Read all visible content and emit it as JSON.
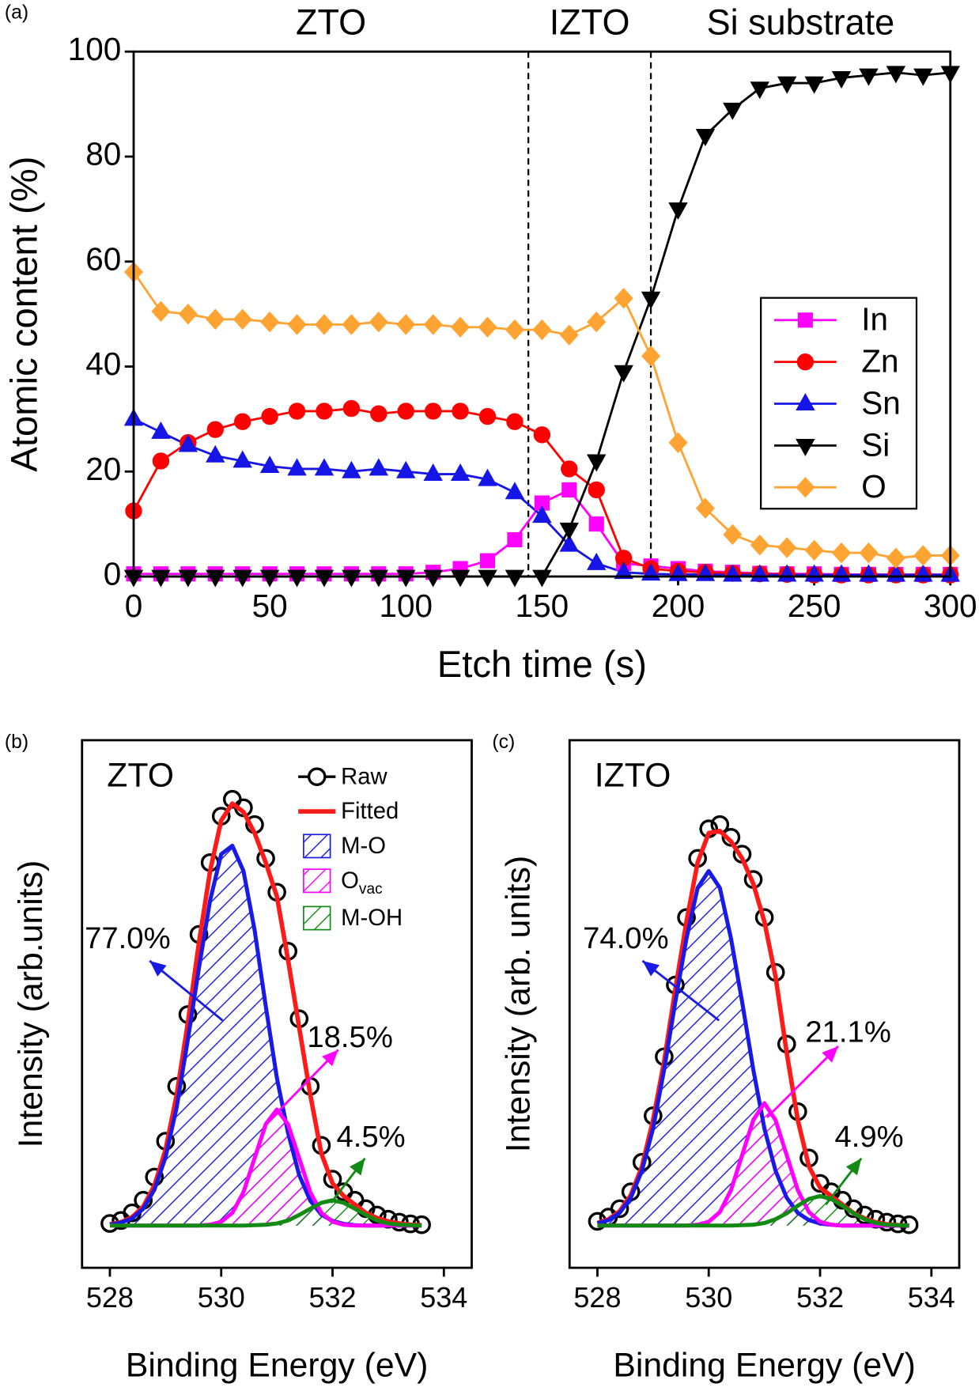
{
  "chart_data": [
    {
      "type": "line",
      "panel": "(a)",
      "xlabel": "Etch time (s)",
      "ylabel": "Atomic content (%)",
      "x": [
        0,
        10,
        20,
        30,
        40,
        50,
        60,
        70,
        80,
        90,
        100,
        110,
        120,
        130,
        140,
        150,
        160,
        170,
        180,
        190,
        200,
        210,
        220,
        230,
        240,
        250,
        260,
        270,
        280,
        290,
        300
      ],
      "xlim": [
        0,
        300
      ],
      "xticks": [
        0,
        50,
        100,
        150,
        200,
        250,
        300
      ],
      "ylim": [
        0,
        100
      ],
      "yticks": [
        0,
        20,
        40,
        60,
        80,
        100
      ],
      "vlines": [
        145,
        190
      ],
      "regions": [
        "ZTO",
        "IZTO",
        "Si substrate"
      ],
      "legend": "center right",
      "series": [
        {
          "name": "In",
          "color": "#ff00ff",
          "marker": "square",
          "values": [
            0.5,
            0.5,
            0.5,
            0.5,
            0.5,
            0.5,
            0.5,
            0.5,
            0.5,
            0.5,
            0.5,
            0.8,
            1.5,
            3,
            7,
            14,
            16.5,
            10,
            2.5,
            2,
            1.5,
            1,
            0.8,
            0.6,
            0.5,
            0.5,
            0.4,
            0.4,
            0.4,
            0.4,
            0.4
          ]
        },
        {
          "name": "Zn",
          "color": "#ff0000",
          "marker": "circle",
          "values": [
            12.5,
            22,
            25.5,
            28,
            29.5,
            30.5,
            31.5,
            31.5,
            32,
            31,
            31.5,
            31.5,
            31.5,
            30.5,
            29.5,
            27,
            20.5,
            16.5,
            3.5,
            1.5,
            1,
            0.8,
            0.6,
            0.5,
            0.4,
            0.3,
            0.3,
            0.3,
            0.3,
            0.3,
            0.3
          ]
        },
        {
          "name": "Sn",
          "color": "#1515e6",
          "marker": "triangle-up",
          "values": [
            30,
            27.5,
            25,
            23,
            22,
            21,
            20.5,
            20.5,
            20,
            20.5,
            20,
            19.5,
            19.5,
            18.5,
            16,
            11.5,
            6,
            2.5,
            0.8,
            0.5,
            0.4,
            0.4,
            0.3,
            0.3,
            0.3,
            0.3,
            0.3,
            0.3,
            0.3,
            0.3,
            0.3
          ]
        },
        {
          "name": "Si",
          "color": "#000000",
          "marker": "triangle-down",
          "values": [
            0,
            0,
            0,
            0,
            0,
            0,
            0,
            0,
            0,
            0,
            0,
            0,
            0,
            0,
            0,
            0,
            9,
            22,
            39,
            53,
            70,
            84,
            89,
            93,
            94,
            94,
            95,
            95.5,
            96,
            95.5,
            96
          ]
        },
        {
          "name": "O",
          "color": "#ffa333",
          "marker": "diamond",
          "values": [
            58,
            50.5,
            50,
            49,
            49,
            48.5,
            48,
            48,
            48,
            48.5,
            48,
            48,
            47.5,
            47.5,
            47,
            47,
            46,
            48.5,
            53,
            42,
            25.5,
            13,
            8,
            6,
            5.5,
            5,
            4.5,
            4.5,
            3.5,
            4,
            4
          ]
        }
      ]
    },
    {
      "type": "xps",
      "panel": "(b)",
      "title": "ZTO",
      "xlabel": "Binding Energy (eV)",
      "ylabel": "Intensity (arb.units)",
      "x": [
        528.0,
        528.2,
        528.4,
        528.6,
        528.8,
        529.0,
        529.2,
        529.4,
        529.6,
        529.8,
        530.0,
        530.2,
        530.4,
        530.6,
        530.8,
        531.0,
        531.2,
        531.4,
        531.6,
        531.8,
        532.0,
        532.2,
        532.4,
        532.6,
        532.8,
        533.0,
        533.2,
        533.4,
        533.6
      ],
      "xlim": [
        527.5,
        534.5
      ],
      "xticks": [
        528,
        530,
        532,
        534
      ],
      "ylim": [
        -0.1,
        1.15
      ],
      "legend": "upper right",
      "series": [
        {
          "name": "Raw",
          "kind": "points",
          "color": "#000000",
          "values": [
            0.005,
            0.012,
            0.03,
            0.06,
            0.115,
            0.2,
            0.33,
            0.5,
            0.69,
            0.86,
            0.97,
            1.01,
            0.99,
            0.95,
            0.87,
            0.79,
            0.65,
            0.49,
            0.33,
            0.19,
            0.11,
            0.08,
            0.06,
            0.04,
            0.025,
            0.015,
            0.008,
            0.004,
            0.002
          ]
        },
        {
          "name": "Fitted",
          "kind": "line",
          "color": "#ff1a1a",
          "values": [
            0.003,
            0.008,
            0.02,
            0.045,
            0.095,
            0.18,
            0.31,
            0.48,
            0.67,
            0.84,
            0.96,
            1.0,
            0.98,
            0.93,
            0.86,
            0.78,
            0.63,
            0.47,
            0.31,
            0.17,
            0.1,
            0.07,
            0.05,
            0.03,
            0.018,
            0.01,
            0.005,
            0.002,
            0.001
          ]
        },
        {
          "name": "M-O",
          "kind": "area",
          "color": "#1a1ae6",
          "label": "77.0%",
          "values": [
            0.002,
            0.007,
            0.017,
            0.04,
            0.085,
            0.162,
            0.28,
            0.44,
            0.61,
            0.77,
            0.88,
            0.9,
            0.84,
            0.7,
            0.52,
            0.35,
            0.22,
            0.12,
            0.059,
            0.026,
            0.011,
            0.004,
            0.001,
            0,
            0,
            0,
            0,
            0,
            0
          ]
        },
        {
          "name": "O",
          "name_subscript": "vac",
          "kind": "area",
          "color": "#ff00ff",
          "label": "18.5%",
          "values": [
            0,
            0,
            0,
            0,
            0,
            0,
            0,
            0,
            0,
            0.002,
            0.009,
            0.03,
            0.079,
            0.16,
            0.24,
            0.275,
            0.24,
            0.16,
            0.079,
            0.03,
            0.009,
            0.002,
            0,
            0,
            0,
            0,
            0,
            0,
            0
          ]
        },
        {
          "name": "M-OH",
          "kind": "area",
          "color": "#138a13",
          "label": "4.5%",
          "values": [
            0,
            0,
            0,
            0,
            0,
            0,
            0,
            0,
            0,
            0,
            0,
            0,
            0,
            0.001,
            0.002,
            0.005,
            0.012,
            0.025,
            0.04,
            0.054,
            0.06,
            0.054,
            0.04,
            0.025,
            0.012,
            0.005,
            0.002,
            0.001,
            0
          ]
        }
      ]
    },
    {
      "type": "xps",
      "panel": "(c)",
      "title": "IZTO",
      "xlabel": "Binding Energy (eV)",
      "ylabel": "Intensity (arb. units)",
      "x": [
        528.0,
        528.2,
        528.4,
        528.6,
        528.8,
        529.0,
        529.2,
        529.4,
        529.6,
        529.8,
        530.0,
        530.2,
        530.4,
        530.6,
        530.8,
        531.0,
        531.2,
        531.4,
        531.6,
        531.8,
        532.0,
        532.2,
        532.4,
        532.6,
        532.8,
        533.0,
        533.2,
        533.4,
        533.6
      ],
      "xlim": [
        527.5,
        534.5
      ],
      "xticks": [
        528,
        530,
        532,
        534
      ],
      "ylim": [
        -0.1,
        1.15
      ],
      "series": [
        {
          "name": "Raw",
          "kind": "points",
          "color": "#000000",
          "values": [
            0.01,
            0.02,
            0.04,
            0.08,
            0.15,
            0.26,
            0.4,
            0.57,
            0.73,
            0.87,
            0.94,
            0.95,
            0.92,
            0.88,
            0.82,
            0.73,
            0.6,
            0.43,
            0.27,
            0.16,
            0.1,
            0.08,
            0.06,
            0.04,
            0.025,
            0.015,
            0.008,
            0.004,
            0.002
          ]
        },
        {
          "name": "Fitted",
          "kind": "line",
          "color": "#ff1a1a",
          "values": [
            0.006,
            0.015,
            0.034,
            0.072,
            0.14,
            0.25,
            0.39,
            0.56,
            0.72,
            0.86,
            0.93,
            0.935,
            0.91,
            0.87,
            0.81,
            0.72,
            0.59,
            0.41,
            0.25,
            0.14,
            0.09,
            0.07,
            0.05,
            0.03,
            0.017,
            0.008,
            0.003,
            0.001,
            0
          ]
        },
        {
          "name": "M-O",
          "kind": "area",
          "color": "#1a1ae6",
          "label": "74.0%",
          "values": [
            0.005,
            0.013,
            0.03,
            0.066,
            0.13,
            0.23,
            0.37,
            0.53,
            0.68,
            0.8,
            0.84,
            0.8,
            0.68,
            0.53,
            0.37,
            0.23,
            0.13,
            0.066,
            0.03,
            0.013,
            0.005,
            0.002,
            0,
            0,
            0,
            0,
            0,
            0,
            0
          ]
        },
        {
          "name": "O",
          "name_subscript": "vac",
          "kind": "area",
          "color": "#ff00ff",
          "label": "21.1%",
          "values": [
            0,
            0,
            0,
            0,
            0,
            0,
            0,
            0,
            0,
            0.002,
            0.009,
            0.032,
            0.084,
            0.167,
            0.25,
            0.29,
            0.25,
            0.167,
            0.084,
            0.032,
            0.009,
            0.002,
            0,
            0,
            0,
            0,
            0,
            0,
            0
          ]
        },
        {
          "name": "M-OH",
          "kind": "area",
          "color": "#138a13",
          "label": "4.9%",
          "values": [
            0,
            0,
            0,
            0,
            0,
            0,
            0,
            0,
            0,
            0,
            0,
            0,
            0,
            0.001,
            0.002,
            0.006,
            0.015,
            0.029,
            0.047,
            0.063,
            0.07,
            0.063,
            0.047,
            0.029,
            0.015,
            0.006,
            0.002,
            0.001,
            0
          ]
        }
      ]
    }
  ]
}
